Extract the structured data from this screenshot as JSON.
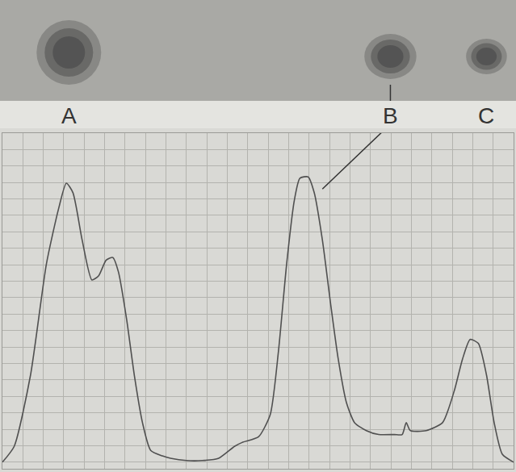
{
  "chart_data": {
    "type": "line",
    "x": [
      0,
      2.3,
      5.5,
      8.6,
      11.0,
      12.5,
      13.8,
      15.6,
      17.5,
      18.8,
      20.3,
      21.6,
      22.7,
      24.3,
      25.8,
      27.4,
      29.0,
      31.3,
      32.9,
      36.0,
      39.1,
      42.3,
      45.4,
      46.9,
      50.1,
      52.4,
      54.0,
      55.6,
      57.1,
      58.2,
      59.8,
      61.0,
      62.6,
      64.2,
      65.7,
      67.3,
      68.9,
      71.2,
      73.6,
      76.7,
      78.2,
      79.0,
      79.8,
      82.9,
      86.1,
      88.4,
      90.0,
      91.5,
      93.1,
      94.7,
      96.2,
      97.8,
      100
    ],
    "values": [
      0,
      4.8,
      26.5,
      60.2,
      77.1,
      84.8,
      81.9,
      67.5,
      55.4,
      56.6,
      61.4,
      62.2,
      57.8,
      43.4,
      26.5,
      12.0,
      3.6,
      1.9,
      1.2,
      0.5,
      0.5,
      1.2,
      4.8,
      6.0,
      7.7,
      14.5,
      33.7,
      60.2,
      79.5,
      86.3,
      86.7,
      81.9,
      67.5,
      48.2,
      31.3,
      18.1,
      12.0,
      9.6,
      8.4,
      8.4,
      8.4,
      12.0,
      9.6,
      9.6,
      12.0,
      21.7,
      31.3,
      37.3,
      36.1,
      26.5,
      12.0,
      2.4,
      0
    ],
    "color": "#505050",
    "xlim": [
      0,
      100
    ],
    "ylim": [
      -2,
      100
    ],
    "xticks": [
      0,
      4,
      8,
      12,
      16,
      20,
      24,
      28,
      32,
      36,
      40,
      44,
      48,
      52,
      56,
      60,
      64,
      68,
      72,
      76,
      80,
      84,
      88,
      92,
      96,
      100
    ],
    "yticks": [
      0,
      5,
      10,
      15,
      20,
      25,
      30,
      35,
      40,
      45,
      50,
      55,
      60,
      65,
      70,
      75,
      80,
      85,
      90,
      95,
      100
    ],
    "grid": true,
    "tick_labels": false,
    "annotations": [
      {
        "text": "A",
        "x": 13.0
      },
      {
        "text": "B",
        "x": 75.9,
        "arrow_to": {
          "x": 62.6,
          "y": 83
        }
      },
      {
        "text": "C",
        "x": 94.7
      }
    ]
  }
}
